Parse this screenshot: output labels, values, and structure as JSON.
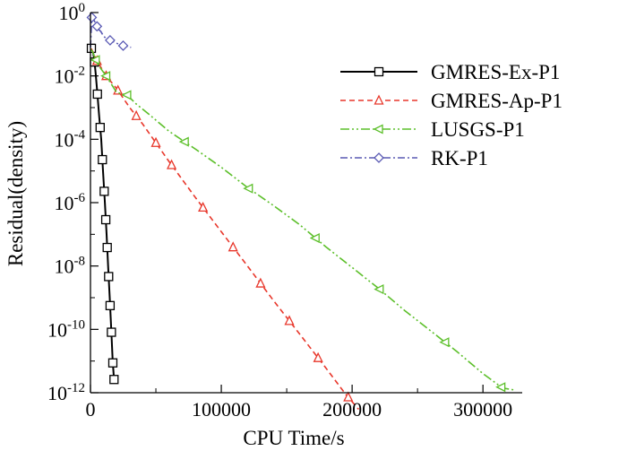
{
  "chart_data": {
    "type": "line",
    "title": "",
    "xlabel": "CPU Time/s",
    "ylabel": "Residual(density)",
    "x_ticks": [
      {
        "value": 0,
        "label": "0"
      },
      {
        "value": 100000,
        "label": "100000"
      },
      {
        "value": 200000,
        "label": "200000"
      },
      {
        "value": 300000,
        "label": "300000"
      }
    ],
    "y_ticks": [
      {
        "exp": 0,
        "base": "10",
        "sup": "0"
      },
      {
        "exp": -2,
        "base": "10",
        "sup": "-2"
      },
      {
        "exp": -4,
        "base": "10",
        "sup": "-4"
      },
      {
        "exp": -6,
        "base": "10",
        "sup": "-6"
      },
      {
        "exp": -8,
        "base": "10",
        "sup": "-8"
      },
      {
        "exp": -10,
        "base": "10",
        "sup": "-10"
      },
      {
        "exp": -12,
        "base": "10",
        "sup": "-12"
      }
    ],
    "xlim": [
      0,
      330000
    ],
    "ylim_log10": [
      -12,
      0
    ],
    "y_scale": "log",
    "legend_position": "top-right",
    "series": [
      {
        "name": "GMRES-Ex-P1",
        "color": "#000000",
        "dash": "solid",
        "marker": "square",
        "points": [
          [
            0,
            0.07
          ],
          [
            600,
            0.075
          ],
          [
            1300,
            0.07
          ],
          [
            2200,
            0.05
          ],
          [
            3000,
            0.03
          ],
          [
            4000,
            0.012
          ],
          [
            5200,
            0.003
          ],
          [
            6700,
            0.0005
          ],
          [
            8200,
            0.0001
          ],
          [
            9600,
            1e-05
          ],
          [
            11000,
            1e-06
          ],
          [
            12300,
            1e-07
          ],
          [
            13500,
            1e-08
          ],
          [
            14700,
            1e-09
          ],
          [
            15900,
            1e-10
          ],
          [
            17000,
            1e-11
          ],
          [
            18200,
            2e-12
          ]
        ],
        "markers_x": [
          700,
          3100,
          5300,
          7400,
          9100,
          10500,
          11700,
          12800,
          13900,
          15000,
          16000,
          17100,
          18000
        ]
      },
      {
        "name": "GMRES-Ap-P1",
        "color": "#e8372b",
        "dash": "dashed",
        "marker": "triangle",
        "points": [
          [
            0,
            0.07
          ],
          [
            800,
            0.07
          ],
          [
            5000,
            0.03
          ],
          [
            12000,
            0.01
          ],
          [
            20000,
            0.004
          ],
          [
            30000,
            0.001
          ],
          [
            40000,
            0.0003
          ],
          [
            60000,
            2e-05
          ],
          [
            80000,
            1.5e-06
          ],
          [
            100000,
            1.2e-07
          ],
          [
            120000,
            1e-08
          ],
          [
            140000,
            8e-10
          ],
          [
            160000,
            7e-11
          ],
          [
            180000,
            6e-12
          ],
          [
            195000,
            9e-13
          ],
          [
            205000,
            3e-13
          ]
        ],
        "markers_x": [
          5000,
          12000,
          21000,
          35000,
          50000,
          62000,
          86000,
          109000,
          130000,
          152000,
          174000,
          197000
        ]
      },
      {
        "name": "LUSGS-P1",
        "color": "#5cbf2a",
        "dash": "dashdotdot",
        "marker": "triangle-left",
        "points": [
          [
            0,
            0.07
          ],
          [
            1500,
            0.06
          ],
          [
            5000,
            0.025
          ],
          [
            12000,
            0.01
          ],
          [
            20000,
            0.003
          ],
          [
            28000,
            0.0025
          ],
          [
            35000,
            0.0013
          ],
          [
            45000,
            0.0006
          ],
          [
            60000,
            0.00018
          ],
          [
            80000,
            5e-05
          ],
          [
            100000,
            1.3e-05
          ],
          [
            120000,
            3e-06
          ],
          [
            140000,
            8e-07
          ],
          [
            160000,
            2e-07
          ],
          [
            180000,
            4e-08
          ],
          [
            200000,
            9e-09
          ],
          [
            220000,
            2e-09
          ],
          [
            240000,
            4e-10
          ],
          [
            260000,
            9e-11
          ],
          [
            280000,
            2e-11
          ],
          [
            300000,
            4e-12
          ],
          [
            315000,
            1.4e-12
          ],
          [
            325000,
            1.2e-12
          ]
        ],
        "markers_x": [
          4000,
          12000,
          28000,
          72000,
          121000,
          172000,
          221000,
          271000,
          314000
        ]
      },
      {
        "name": "RK-P1",
        "color": "#5a5ab4",
        "dash": "dashdot",
        "marker": "diamond",
        "points": [
          [
            0,
            0.08
          ],
          [
            1000,
            0.7
          ],
          [
            2500,
            0.6
          ],
          [
            4000,
            0.45
          ],
          [
            6000,
            0.3
          ],
          [
            8000,
            0.25
          ],
          [
            10000,
            0.18
          ],
          [
            13000,
            0.14
          ],
          [
            16000,
            0.13
          ],
          [
            19000,
            0.11
          ],
          [
            22000,
            0.1
          ],
          [
            25000,
            0.09
          ],
          [
            28000,
            0.085
          ],
          [
            31000,
            0.08
          ]
        ],
        "markers_x": [
          1000,
          5000,
          15000,
          25000
        ]
      }
    ]
  }
}
